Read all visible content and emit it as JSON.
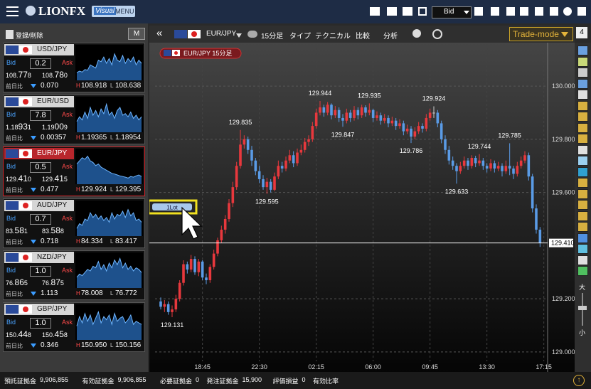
{
  "header": {
    "logo": "LIONFX",
    "visual": "Visual",
    "menu": "MENU",
    "price_type": "Bid"
  },
  "rate_panel": {
    "edit": "登録/削除",
    "mode": "M",
    "change_label": "前日比",
    "bid_label": "Bid",
    "ask_label": "Ask",
    "high_label": "H",
    "low_label": "L",
    "pairs": [
      {
        "name": "USD/JPY",
        "spread": "0.2",
        "bid": [
          "108.",
          "77",
          "8"
        ],
        "ask": [
          "108.",
          "78",
          "0"
        ],
        "change": "0.070",
        "change_direction": "down",
        "high": "108.918",
        "low": "108.638",
        "selected": false,
        "sparkline": [
          20,
          25,
          22,
          30,
          28,
          45,
          40,
          35,
          60,
          55,
          70,
          50,
          65,
          45,
          80,
          60,
          55,
          75,
          50,
          65,
          55,
          70,
          45,
          60,
          50
        ]
      },
      {
        "name": "EUR/USD",
        "spread": "7.8",
        "bid": [
          "1.18",
          "93",
          "1"
        ],
        "ask": [
          "1.19",
          "00",
          "9"
        ],
        "change": "0.00357",
        "change_direction": "down",
        "high": "1.19365",
        "low": "1.18954",
        "selected": false,
        "sparkline": [
          30,
          45,
          35,
          60,
          40,
          75,
          50,
          65,
          45,
          70,
          55,
          85,
          50,
          60,
          40,
          65,
          75,
          50,
          55,
          45,
          60,
          40,
          50,
          35,
          45
        ]
      },
      {
        "name": "EUR/JPY",
        "spread": "0.5",
        "bid": [
          "129.",
          "41",
          "0"
        ],
        "ask": [
          "129.",
          "41",
          "5"
        ],
        "change": "0.477",
        "change_direction": "down",
        "high": "129.924",
        "low": "129.395",
        "selected": true,
        "sparkline": [
          60,
          70,
          80,
          75,
          85,
          70,
          65,
          55,
          60,
          50,
          45,
          40,
          35,
          30,
          28,
          25,
          22,
          20,
          18,
          15,
          20,
          18,
          22,
          25,
          20
        ]
      },
      {
        "name": "AUD/JPY",
        "spread": "0.7",
        "bid": [
          "83.",
          "58",
          "1"
        ],
        "ask": [
          "83.",
          "58",
          "8"
        ],
        "change": "0.718",
        "change_direction": "down",
        "high": "84.334",
        "low": "83.417",
        "selected": false,
        "sparkline": [
          20,
          35,
          30,
          50,
          45,
          70,
          55,
          65,
          50,
          60,
          45,
          55,
          40,
          70,
          50,
          65,
          60,
          75,
          55,
          80,
          60,
          70,
          45,
          50,
          40
        ]
      },
      {
        "name": "NZD/JPY",
        "spread": "1.0",
        "bid": [
          "76.",
          "86",
          "5"
        ],
        "ask": [
          "76.",
          "87",
          "5"
        ],
        "change": "1.113",
        "change_direction": "down",
        "high": "78.008",
        "low": "76.772",
        "selected": false,
        "sparkline": [
          30,
          40,
          35,
          45,
          55,
          50,
          65,
          60,
          80,
          55,
          70,
          50,
          75,
          60,
          85,
          70,
          90,
          60,
          75,
          55,
          65,
          50,
          60,
          55,
          45
        ]
      },
      {
        "name": "GBP/JPY",
        "spread": "1.0",
        "bid": [
          "150.",
          "44",
          "8"
        ],
        "ask": [
          "150.",
          "45",
          "8"
        ],
        "change": "0.346",
        "change_direction": "down",
        "high": "150.950",
        "low": "150.156",
        "selected": false,
        "sparkline": [
          40,
          70,
          50,
          80,
          55,
          75,
          45,
          65,
          85,
          50,
          70,
          60,
          75,
          45,
          80,
          55,
          65,
          70,
          50,
          60,
          75,
          45,
          55,
          50,
          45
        ]
      }
    ]
  },
  "toolbar": {
    "symbol": "EUR/JPY",
    "period": "15分足",
    "type": "タイプ",
    "technical": "テクニカル",
    "compare": "比較",
    "analysis": "分析",
    "trade_mode": "Trade-mode",
    "count": "4"
  },
  "chart_data": {
    "type": "candlestick",
    "legend": "EUR/JPY 15分足",
    "order_button": "1Lot",
    "up_color": "#e8383d",
    "down_color": "#5a9be6",
    "grid": true,
    "xlim": [
      -1.5,
      102
    ],
    "ylim": [
      128.965,
      130.158
    ],
    "xticks": [
      {
        "value": 11,
        "label": "18:45"
      },
      {
        "value": 26,
        "label": "22:30"
      },
      {
        "value": 41,
        "label": "02:15"
      },
      {
        "value": 56,
        "label": "06:00"
      },
      {
        "value": 71,
        "label": "09:45"
      },
      {
        "value": 86,
        "label": "13:30"
      },
      {
        "value": 101,
        "label": "17:15"
      }
    ],
    "yticks": [
      {
        "value": 129,
        "label": "129.000"
      },
      {
        "value": 129.2,
        "label": "129.200"
      },
      {
        "value": 129.6,
        "label": "129.600"
      },
      {
        "value": 129.8,
        "label": "129.800"
      },
      {
        "value": 130,
        "label": "130.000"
      }
    ],
    "current": {
      "value": 129.41,
      "label": "129.410"
    },
    "annotations": [
      {
        "x": 3,
        "value": 129.131
      },
      {
        "x": 21,
        "value": 129.835
      },
      {
        "x": 28,
        "value": 129.595
      },
      {
        "x": 42,
        "value": 129.944
      },
      {
        "x": 48,
        "value": 129.847
      },
      {
        "x": 55,
        "value": 129.935
      },
      {
        "x": 66,
        "value": 129.786
      },
      {
        "x": 72,
        "value": 129.924
      },
      {
        "x": 78,
        "value": 129.633
      },
      {
        "x": 84,
        "value": 129.744
      },
      {
        "x": 92,
        "value": 129.785
      }
    ],
    "candles": [
      [
        129.19,
        129.205,
        129.16,
        129.17
      ],
      [
        129.17,
        129.195,
        129.15,
        129.18
      ],
      [
        129.18,
        129.19,
        129.14,
        129.15
      ],
      [
        129.15,
        129.175,
        129.131,
        129.16
      ],
      [
        129.16,
        129.215,
        129.15,
        129.2
      ],
      [
        129.2,
        129.27,
        129.19,
        129.26
      ],
      [
        129.26,
        129.345,
        129.25,
        129.33
      ],
      [
        129.33,
        129.34,
        129.295,
        129.31
      ],
      [
        129.31,
        129.365,
        129.3,
        129.35
      ],
      [
        129.35,
        129.36,
        129.29,
        129.3
      ],
      [
        129.3,
        129.35,
        129.285,
        129.34
      ],
      [
        129.34,
        129.345,
        129.27,
        129.28
      ],
      [
        129.28,
        129.295,
        129.255,
        129.27
      ],
      [
        129.27,
        129.33,
        129.26,
        129.32
      ],
      [
        129.32,
        129.385,
        129.31,
        129.37
      ],
      [
        129.37,
        129.43,
        129.36,
        129.42
      ],
      [
        129.42,
        129.475,
        129.41,
        129.46
      ],
      [
        129.46,
        129.515,
        129.445,
        129.5
      ],
      [
        129.5,
        129.575,
        129.49,
        129.56
      ],
      [
        129.56,
        129.64,
        129.545,
        129.62
      ],
      [
        129.62,
        129.715,
        129.61,
        129.7
      ],
      [
        129.7,
        129.835,
        129.69,
        129.78
      ],
      [
        129.78,
        129.815,
        129.765,
        129.8
      ],
      [
        129.8,
        129.81,
        129.745,
        129.76
      ],
      [
        129.76,
        129.775,
        129.7,
        129.72
      ],
      [
        129.72,
        129.73,
        129.665,
        129.68
      ],
      [
        129.68,
        129.7,
        129.635,
        129.65
      ],
      [
        129.65,
        129.665,
        129.61,
        129.62
      ],
      [
        129.62,
        129.655,
        129.595,
        129.64
      ],
      [
        129.64,
        129.65,
        129.6,
        129.61
      ],
      [
        129.61,
        129.675,
        129.605,
        129.66
      ],
      [
        129.66,
        129.72,
        129.65,
        129.7
      ],
      [
        129.7,
        129.715,
        129.675,
        129.69
      ],
      [
        129.69,
        129.735,
        129.68,
        129.72
      ],
      [
        129.72,
        129.76,
        129.71,
        129.74
      ],
      [
        129.74,
        129.755,
        129.695,
        129.71
      ],
      [
        129.71,
        129.765,
        129.7,
        129.75
      ],
      [
        129.75,
        129.78,
        129.74,
        129.76
      ],
      [
        129.76,
        129.805,
        129.75,
        129.79
      ],
      [
        129.79,
        129.815,
        129.775,
        129.8
      ],
      [
        129.8,
        129.865,
        129.79,
        129.85
      ],
      [
        129.85,
        129.915,
        129.84,
        129.9
      ],
      [
        129.9,
        129.944,
        129.89,
        129.92
      ],
      [
        129.92,
        129.93,
        129.885,
        129.9
      ],
      [
        129.9,
        129.94,
        129.89,
        129.93
      ],
      [
        129.93,
        129.935,
        129.875,
        129.89
      ],
      [
        129.89,
        129.925,
        129.88,
        129.91
      ],
      [
        129.91,
        129.92,
        129.865,
        129.88
      ],
      [
        129.88,
        129.895,
        129.847,
        129.87
      ],
      [
        129.87,
        129.915,
        129.86,
        129.9
      ],
      [
        129.9,
        129.91,
        129.865,
        129.88
      ],
      [
        129.88,
        129.925,
        129.87,
        129.91
      ],
      [
        129.91,
        129.92,
        129.875,
        129.89
      ],
      [
        129.89,
        129.93,
        129.88,
        129.92
      ],
      [
        129.92,
        129.928,
        129.885,
        129.9
      ],
      [
        129.9,
        129.935,
        129.89,
        129.91
      ],
      [
        129.91,
        129.915,
        129.865,
        129.88
      ],
      [
        129.88,
        129.905,
        129.87,
        129.89
      ],
      [
        129.89,
        129.9,
        129.855,
        129.87
      ],
      [
        129.87,
        129.895,
        129.86,
        129.88
      ],
      [
        129.88,
        129.89,
        129.845,
        129.86
      ],
      [
        129.86,
        129.885,
        129.85,
        129.87
      ],
      [
        129.87,
        129.88,
        129.835,
        129.85
      ],
      [
        129.85,
        129.875,
        129.84,
        129.86
      ],
      [
        129.86,
        129.87,
        129.815,
        129.83
      ],
      [
        129.83,
        129.855,
        129.82,
        129.84
      ],
      [
        129.84,
        129.85,
        129.786,
        129.81
      ],
      [
        129.81,
        129.845,
        129.8,
        129.83
      ],
      [
        129.83,
        129.865,
        129.82,
        129.85
      ],
      [
        129.85,
        129.86,
        129.825,
        129.84
      ],
      [
        129.84,
        129.895,
        129.83,
        129.88
      ],
      [
        129.88,
        129.915,
        129.87,
        129.9
      ],
      [
        129.9,
        129.924,
        129.88,
        129.9
      ],
      [
        129.9,
        129.91,
        129.845,
        129.86
      ],
      [
        129.86,
        129.87,
        129.785,
        129.8
      ],
      [
        129.8,
        129.815,
        129.745,
        129.76
      ],
      [
        129.76,
        129.775,
        129.705,
        129.72
      ],
      [
        129.72,
        129.735,
        129.685,
        129.7
      ],
      [
        129.7,
        129.71,
        129.633,
        129.68
      ],
      [
        129.68,
        129.715,
        129.67,
        129.7
      ],
      [
        129.7,
        129.735,
        129.69,
        129.72
      ],
      [
        129.72,
        129.73,
        129.685,
        129.7
      ],
      [
        129.7,
        129.74,
        129.69,
        129.73
      ],
      [
        129.73,
        129.738,
        129.695,
        129.71
      ],
      [
        129.71,
        129.744,
        129.7,
        129.72
      ],
      [
        129.72,
        129.73,
        129.685,
        129.7
      ],
      [
        129.7,
        129.71,
        129.675,
        129.69
      ],
      [
        129.69,
        129.725,
        129.68,
        129.71
      ],
      [
        129.71,
        129.72,
        129.675,
        129.69
      ],
      [
        129.69,
        129.715,
        129.68,
        129.7
      ],
      [
        129.7,
        129.71,
        129.66,
        129.68
      ],
      [
        129.68,
        129.72,
        129.67,
        129.7
      ],
      [
        129.7,
        129.785,
        129.665,
        129.69
      ],
      [
        129.69,
        129.7,
        129.65,
        129.67
      ],
      [
        129.67,
        129.715,
        129.66,
        129.7
      ],
      [
        129.7,
        129.735,
        129.69,
        129.72
      ],
      [
        129.72,
        129.755,
        129.71,
        129.74
      ],
      [
        129.74,
        129.75,
        129.645,
        129.66
      ],
      [
        129.66,
        129.67,
        129.525,
        129.54
      ],
      [
        129.54,
        129.555,
        129.445,
        129.46
      ],
      [
        129.46,
        129.47,
        129.395,
        129.41
      ]
    ]
  },
  "side": {
    "large": "大",
    "small": "小"
  },
  "status": [
    {
      "label": "預託証拠金",
      "value": "9,906,855"
    },
    {
      "label": "有効証拠金",
      "value": "9,906,855"
    },
    {
      "label": "必要証拠金",
      "value": "0"
    },
    {
      "label": "発注証拠金",
      "value": "15,900"
    },
    {
      "label": "評価損益",
      "value": "0"
    },
    {
      "label": "有効比率"
    }
  ]
}
